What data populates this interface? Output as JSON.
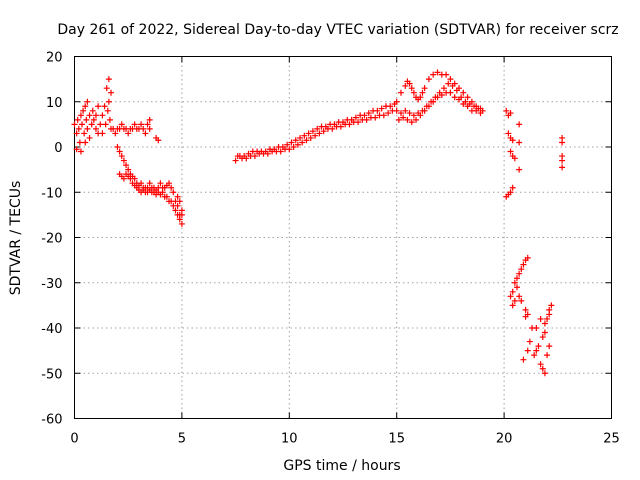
{
  "chart_data": {
    "type": "scatter",
    "title": "Day 261 of 2022, Sidereal Day-to-day VTEC variation (SDTVAR) for receiver scrz",
    "xlabel": "GPS time / hours",
    "ylabel": "SDTVAR / TECUs",
    "xlim": [
      0,
      25
    ],
    "ylim": [
      -60,
      20
    ],
    "x_ticks": [
      0,
      5,
      10,
      15,
      20,
      25
    ],
    "x_tick_labels": [
      "0",
      "5",
      "10",
      "15",
      "20",
      "25"
    ],
    "y_ticks": [
      -60,
      -50,
      -40,
      -30,
      -20,
      -10,
      0,
      10,
      20
    ],
    "y_tick_labels": [
      "-60",
      "-50",
      "-40",
      "-30",
      "-20",
      "-10",
      "0",
      "10",
      "20"
    ],
    "grid": true,
    "marker": "+",
    "color": "#ff0000",
    "series": [
      {
        "name": "SDTVAR",
        "points": [
          [
            0.0,
            5
          ],
          [
            0.1,
            3
          ],
          [
            0.1,
            -0.5
          ],
          [
            0.15,
            6
          ],
          [
            0.2,
            4
          ],
          [
            0.25,
            1
          ],
          [
            0.3,
            7
          ],
          [
            0.3,
            -1
          ],
          [
            0.35,
            5
          ],
          [
            0.4,
            8
          ],
          [
            0.45,
            3
          ],
          [
            0.5,
            9
          ],
          [
            0.5,
            1
          ],
          [
            0.55,
            6
          ],
          [
            0.6,
            4
          ],
          [
            0.6,
            10
          ],
          [
            0.7,
            7
          ],
          [
            0.7,
            2
          ],
          [
            0.8,
            5
          ],
          [
            0.85,
            8
          ],
          [
            0.9,
            6
          ],
          [
            1.0,
            4
          ],
          [
            1.0,
            7
          ],
          [
            1.1,
            3
          ],
          [
            1.1,
            9
          ],
          [
            1.2,
            5
          ],
          [
            1.3,
            7
          ],
          [
            1.3,
            3
          ],
          [
            1.4,
            9
          ],
          [
            1.45,
            5
          ],
          [
            1.5,
            13
          ],
          [
            1.55,
            8
          ],
          [
            1.6,
            15
          ],
          [
            1.6,
            10
          ],
          [
            1.65,
            6
          ],
          [
            1.7,
            12
          ],
          [
            1.7,
            4
          ],
          [
            1.8,
            4
          ],
          [
            1.9,
            3
          ],
          [
            2.0,
            4
          ],
          [
            2.1,
            4
          ],
          [
            2.2,
            5
          ],
          [
            2.3,
            4
          ],
          [
            2.4,
            4
          ],
          [
            2.5,
            3
          ],
          [
            2.6,
            4
          ],
          [
            2.7,
            4
          ],
          [
            2.8,
            5
          ],
          [
            2.9,
            4
          ],
          [
            3.0,
            4
          ],
          [
            3.1,
            5
          ],
          [
            3.2,
            4
          ],
          [
            3.3,
            3
          ],
          [
            3.4,
            5
          ],
          [
            3.5,
            6
          ],
          [
            3.5,
            4
          ],
          [
            3.8,
            2
          ],
          [
            3.9,
            1.5
          ],
          [
            2.0,
            0
          ],
          [
            2.1,
            -1
          ],
          [
            2.2,
            -2
          ],
          [
            2.3,
            -3
          ],
          [
            2.4,
            -4
          ],
          [
            2.5,
            -5
          ],
          [
            2.6,
            -6
          ],
          [
            2.7,
            -6.5
          ],
          [
            2.8,
            -7
          ],
          [
            2.9,
            -8
          ],
          [
            3.0,
            -8.5
          ],
          [
            3.1,
            -8
          ],
          [
            3.2,
            -9
          ],
          [
            3.3,
            -9
          ],
          [
            3.4,
            -9
          ],
          [
            3.5,
            -8
          ],
          [
            3.6,
            -9
          ],
          [
            3.7,
            -9
          ],
          [
            3.8,
            -9.5
          ],
          [
            3.9,
            -9
          ],
          [
            4.0,
            -8
          ],
          [
            4.1,
            -9
          ],
          [
            4.2,
            -9
          ],
          [
            4.3,
            -8.5
          ],
          [
            4.4,
            -8
          ],
          [
            4.5,
            -9
          ],
          [
            4.6,
            -10
          ],
          [
            4.7,
            -12
          ],
          [
            4.8,
            -13
          ],
          [
            4.9,
            -15
          ],
          [
            5.0,
            -17
          ],
          [
            5.0,
            -14
          ],
          [
            4.9,
            -12
          ],
          [
            4.8,
            -11
          ],
          [
            2.1,
            -6
          ],
          [
            2.2,
            -6.5
          ],
          [
            2.3,
            -7
          ],
          [
            2.4,
            -6
          ],
          [
            2.5,
            -6.5
          ],
          [
            2.6,
            -7
          ],
          [
            2.7,
            -8
          ],
          [
            2.8,
            -8.5
          ],
          [
            2.9,
            -9
          ],
          [
            3.0,
            -9.5
          ],
          [
            3.1,
            -10
          ],
          [
            3.2,
            -9.5
          ],
          [
            3.3,
            -10
          ],
          [
            3.4,
            -10
          ],
          [
            3.5,
            -9.5
          ],
          [
            3.6,
            -10
          ],
          [
            3.7,
            -10
          ],
          [
            3.8,
            -10.5
          ],
          [
            3.9,
            -10
          ],
          [
            4.0,
            -10.5
          ],
          [
            4.1,
            -10
          ],
          [
            4.2,
            -11
          ],
          [
            4.3,
            -11
          ],
          [
            4.4,
            -12
          ],
          [
            4.5,
            -12
          ],
          [
            4.6,
            -13
          ],
          [
            4.7,
            -14
          ],
          [
            4.8,
            -15
          ],
          [
            4.9,
            -16
          ],
          [
            5.0,
            -15
          ],
          [
            7.5,
            -3
          ],
          [
            7.7,
            -2
          ],
          [
            7.9,
            -2
          ],
          [
            8.1,
            -1.5
          ],
          [
            8.3,
            -1
          ],
          [
            8.5,
            -1
          ],
          [
            8.7,
            -1
          ],
          [
            8.9,
            -1
          ],
          [
            9.1,
            -0.5
          ],
          [
            9.3,
            -0.5
          ],
          [
            9.5,
            0
          ],
          [
            9.7,
            0
          ],
          [
            9.9,
            0.5
          ],
          [
            10.1,
            1
          ],
          [
            10.3,
            1.5
          ],
          [
            10.5,
            2
          ],
          [
            10.7,
            2.5
          ],
          [
            10.9,
            3
          ],
          [
            11.1,
            3.5
          ],
          [
            11.3,
            4
          ],
          [
            11.5,
            4.5
          ],
          [
            11.7,
            4.5
          ],
          [
            11.9,
            5
          ],
          [
            12.1,
            5
          ],
          [
            12.3,
            5.5
          ],
          [
            12.5,
            5.5
          ],
          [
            12.7,
            6
          ],
          [
            12.9,
            6
          ],
          [
            13.1,
            6.5
          ],
          [
            13.3,
            7
          ],
          [
            13.5,
            7
          ],
          [
            13.7,
            7.5
          ],
          [
            13.9,
            8
          ],
          [
            14.1,
            8
          ],
          [
            14.3,
            8.5
          ],
          [
            14.5,
            9
          ],
          [
            14.7,
            9
          ],
          [
            14.9,
            9.5
          ],
          [
            7.6,
            -2
          ],
          [
            7.8,
            -2.5
          ],
          [
            8.0,
            -2.5
          ],
          [
            8.2,
            -2
          ],
          [
            8.4,
            -2
          ],
          [
            8.6,
            -1.5
          ],
          [
            8.8,
            -1.5
          ],
          [
            9.0,
            -1.5
          ],
          [
            9.2,
            -1
          ],
          [
            9.4,
            -1
          ],
          [
            9.6,
            -1
          ],
          [
            9.8,
            -0.5
          ],
          [
            10.0,
            -0.5
          ],
          [
            10.2,
            0
          ],
          [
            10.4,
            0.5
          ],
          [
            10.6,
            1
          ],
          [
            10.8,
            1.5
          ],
          [
            11.0,
            2
          ],
          [
            11.2,
            2.5
          ],
          [
            11.4,
            3
          ],
          [
            11.6,
            3.5
          ],
          [
            11.8,
            4
          ],
          [
            12.0,
            4
          ],
          [
            12.2,
            4.5
          ],
          [
            12.4,
            4.5
          ],
          [
            12.6,
            5
          ],
          [
            12.8,
            5
          ],
          [
            13.0,
            5.5
          ],
          [
            13.2,
            5.5
          ],
          [
            13.4,
            6
          ],
          [
            13.6,
            6
          ],
          [
            13.8,
            6.5
          ],
          [
            14.0,
            6.5
          ],
          [
            14.2,
            7
          ],
          [
            14.4,
            7
          ],
          [
            14.6,
            7.5
          ],
          [
            14.8,
            8
          ],
          [
            15.0,
            10
          ],
          [
            15.2,
            12
          ],
          [
            15.4,
            13.5
          ],
          [
            15.5,
            14.5
          ],
          [
            15.6,
            14
          ],
          [
            15.7,
            13
          ],
          [
            15.8,
            12
          ],
          [
            15.9,
            11
          ],
          [
            16.0,
            10.5
          ],
          [
            16.1,
            11
          ],
          [
            16.2,
            12
          ],
          [
            16.3,
            13
          ],
          [
            16.5,
            15
          ],
          [
            16.7,
            16
          ],
          [
            16.9,
            16.5
          ],
          [
            17.1,
            16
          ],
          [
            17.3,
            16
          ],
          [
            17.5,
            15
          ],
          [
            17.7,
            14
          ],
          [
            17.9,
            13
          ],
          [
            18.1,
            12
          ],
          [
            18.3,
            11
          ],
          [
            18.5,
            10
          ],
          [
            18.7,
            9
          ],
          [
            18.9,
            8.5
          ],
          [
            19.0,
            8
          ],
          [
            15.0,
            8
          ],
          [
            15.2,
            7.5
          ],
          [
            15.4,
            8
          ],
          [
            15.6,
            7.5
          ],
          [
            15.8,
            7
          ],
          [
            16.0,
            7.5
          ],
          [
            16.2,
            8
          ],
          [
            16.4,
            9
          ],
          [
            16.6,
            10
          ],
          [
            16.8,
            11
          ],
          [
            17.0,
            12
          ],
          [
            17.2,
            13
          ],
          [
            17.4,
            14
          ],
          [
            17.6,
            13.5
          ],
          [
            17.8,
            12.5
          ],
          [
            18.0,
            11
          ],
          [
            18.2,
            10
          ],
          [
            18.4,
            9.5
          ],
          [
            18.6,
            9
          ],
          [
            18.8,
            8.5
          ],
          [
            15.1,
            6
          ],
          [
            15.3,
            6.5
          ],
          [
            15.5,
            6
          ],
          [
            15.7,
            5.5
          ],
          [
            15.9,
            6
          ],
          [
            16.1,
            7
          ],
          [
            16.3,
            8
          ],
          [
            16.5,
            9
          ],
          [
            16.7,
            10
          ],
          [
            16.9,
            11
          ],
          [
            17.1,
            11.5
          ],
          [
            17.3,
            12
          ],
          [
            17.5,
            12
          ],
          [
            17.7,
            11
          ],
          [
            17.9,
            10.5
          ],
          [
            18.1,
            9.5
          ],
          [
            18.3,
            9
          ],
          [
            18.5,
            8
          ],
          [
            18.7,
            8
          ],
          [
            18.9,
            7.5
          ],
          [
            20.1,
            8
          ],
          [
            20.2,
            7
          ],
          [
            20.3,
            7.5
          ],
          [
            20.2,
            3
          ],
          [
            20.3,
            2
          ],
          [
            20.4,
            1.5
          ],
          [
            20.3,
            -1
          ],
          [
            20.4,
            -2
          ],
          [
            20.5,
            -2.5
          ],
          [
            20.7,
            5
          ],
          [
            20.7,
            1
          ],
          [
            20.7,
            -5
          ],
          [
            20.1,
            -11
          ],
          [
            20.2,
            -10.5
          ],
          [
            20.3,
            -10
          ],
          [
            20.4,
            -9
          ],
          [
            20.3,
            -33
          ],
          [
            20.4,
            -32
          ],
          [
            20.4,
            -35
          ],
          [
            20.5,
            -30
          ],
          [
            20.5,
            -34
          ],
          [
            20.6,
            -29
          ],
          [
            20.6,
            -31
          ],
          [
            20.7,
            -28
          ],
          [
            20.7,
            -33
          ],
          [
            20.8,
            -27
          ],
          [
            20.9,
            -26
          ],
          [
            21.0,
            -25
          ],
          [
            21.1,
            -24.5
          ],
          [
            20.8,
            -34
          ],
          [
            21.0,
            -36
          ],
          [
            21.1,
            -37
          ],
          [
            21.0,
            -37.5
          ],
          [
            21.2,
            -43
          ],
          [
            21.4,
            -46
          ],
          [
            21.5,
            -45
          ],
          [
            21.6,
            -44
          ],
          [
            21.7,
            -48
          ],
          [
            21.8,
            -49
          ],
          [
            21.9,
            -50
          ],
          [
            21.8,
            -42
          ],
          [
            21.9,
            -41
          ],
          [
            21.7,
            -38
          ],
          [
            21.5,
            -40
          ],
          [
            21.9,
            -39
          ],
          [
            22.0,
            -38
          ],
          [
            22.1,
            -37
          ],
          [
            22.1,
            -36
          ],
          [
            22.2,
            -35
          ],
          [
            22.0,
            -46
          ],
          [
            22.1,
            -44
          ],
          [
            20.9,
            -47
          ],
          [
            21.1,
            -45
          ],
          [
            21.3,
            -40
          ],
          [
            22.7,
            2
          ],
          [
            22.7,
            1
          ],
          [
            22.7,
            -2
          ],
          [
            22.7,
            -3
          ],
          [
            22.7,
            -4.5
          ]
        ]
      }
    ]
  }
}
